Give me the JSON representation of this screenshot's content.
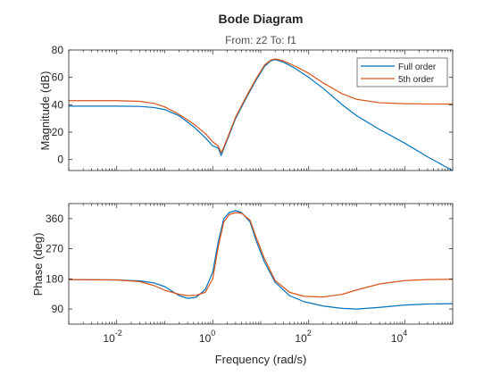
{
  "chart_data": {
    "type": "line",
    "title": "Bode Diagram",
    "subtitle": "From: z2  To: f1",
    "xlabel": "Frequency (rad/s)",
    "x_scale": "log",
    "xlim": [
      0.001,
      100000
    ],
    "x_ticks": [
      0.01,
      1,
      100,
      10000
    ],
    "x_tick_labels": [
      {
        "base": "10",
        "exp": "-2"
      },
      {
        "base": "10",
        "exp": "0"
      },
      {
        "base": "10",
        "exp": "2"
      },
      {
        "base": "10",
        "exp": "4"
      }
    ],
    "grid": false,
    "legend": {
      "placement": "top-right",
      "panel": "magnitude",
      "entries": [
        "Full order",
        "5th order"
      ]
    },
    "colors": {
      "Full order": "#0072BD",
      "5th order": "#D95319"
    },
    "panels": [
      {
        "id": "magnitude",
        "ylabel": "Magnitude (dB)",
        "ylim": [
          -8,
          80
        ],
        "y_ticks": [
          0,
          20,
          40,
          60,
          80
        ],
        "series": [
          {
            "name": "Full order",
            "x": [
              0.001,
              0.01,
              0.03,
              0.06,
              0.1,
              0.2,
              0.4,
              0.7,
              1.0,
              1.3,
              1.5,
              1.7,
              2.2,
              3,
              5,
              8,
              12,
              16,
              20,
              30,
              50,
              100,
              200,
              500,
              1000,
              3000,
              10000,
              30000,
              100000
            ],
            "values": [
              39,
              39,
              38.8,
              38,
              36.5,
              32,
              24,
              16,
              10,
              8.5,
              3,
              8,
              18,
              30,
              45,
              58,
              68,
              72,
              73,
              71,
              67,
              60,
              52,
              40,
              32,
              22,
              12,
              2,
              -8
            ]
          },
          {
            "name": "5th order",
            "x": [
              0.001,
              0.01,
              0.03,
              0.06,
              0.1,
              0.2,
              0.4,
              0.7,
              1.0,
              1.3,
              1.5,
              1.7,
              2.2,
              3,
              5,
              8,
              12,
              16,
              20,
              30,
              50,
              100,
              200,
              500,
              1000,
              3000,
              10000,
              30000,
              100000
            ],
            "values": [
              43,
              43,
              42.5,
              41,
              38.5,
              33,
              26,
              19,
              13,
              10,
              5,
              9,
              19,
              31,
              46,
              59,
              69,
              72.5,
              73.5,
              72,
              68.5,
              63,
              56,
              48,
              44,
              41.5,
              40.8,
              40.6,
              40.5
            ]
          }
        ]
      },
      {
        "id": "phase",
        "ylabel": "Phase (deg)",
        "ylim": [
          45,
          405
        ],
        "y_ticks": [
          90,
          180,
          270,
          360
        ],
        "series": [
          {
            "name": "Full order",
            "x": [
              0.001,
              0.01,
              0.03,
              0.06,
              0.1,
              0.2,
              0.3,
              0.45,
              0.7,
              1.0,
              1.3,
              1.7,
              2.2,
              3,
              4,
              6,
              8,
              12,
              20,
              40,
              80,
              200,
              500,
              1000,
              3000,
              10000,
              30000,
              100000
            ],
            "values": [
              178,
              177,
              174,
              168,
              157,
              130,
              122,
              125,
              148,
              200,
              290,
              360,
              378,
              384,
              378,
              350,
              295,
              230,
              170,
              130,
              112,
              99,
              92,
              90,
              95,
              102,
              105,
              106
            ]
          },
          {
            "name": "5th order",
            "x": [
              0.001,
              0.01,
              0.03,
              0.06,
              0.1,
              0.2,
              0.3,
              0.45,
              0.7,
              1.0,
              1.3,
              1.7,
              2.2,
              3,
              4,
              6,
              8,
              12,
              20,
              40,
              80,
              200,
              500,
              1000,
              3000,
              10000,
              30000,
              100000
            ],
            "values": [
              178,
              177,
              172,
              160,
              146,
              134,
              130,
              131,
              140,
              180,
              275,
              350,
              372,
              378,
              376,
              355,
              305,
              240,
              175,
              140,
              128,
              126,
              134,
              147,
              165,
              175,
              178,
              179
            ]
          }
        ]
      }
    ]
  }
}
